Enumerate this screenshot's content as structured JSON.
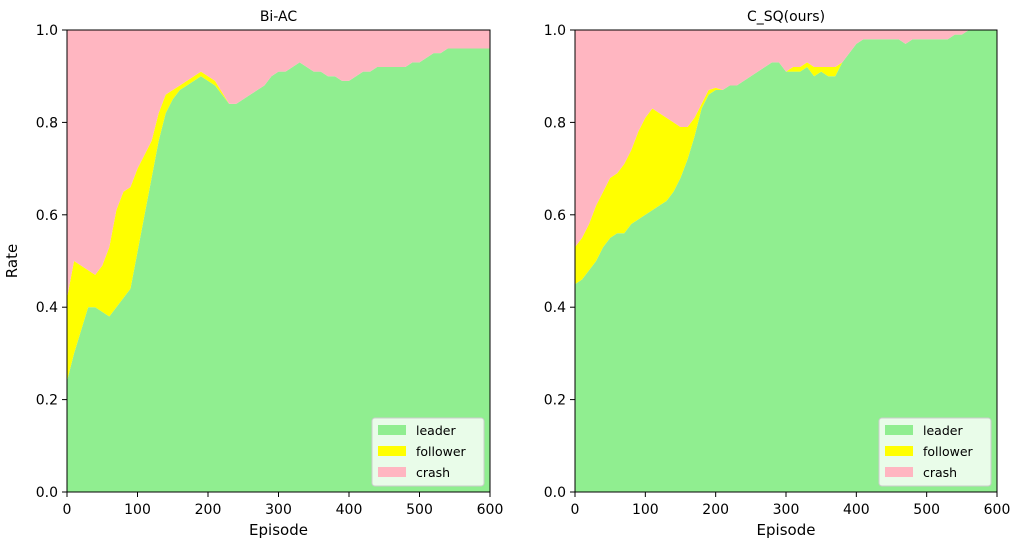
{
  "chart_data": [
    {
      "type": "area",
      "stacked": true,
      "title": "Bi-AC",
      "xlabel": "Episode",
      "ylabel": "Rate",
      "xlim": [
        0,
        600
      ],
      "ylim": [
        0,
        1
      ],
      "xticks": [
        "0",
        "100",
        "200",
        "300",
        "400",
        "500",
        "600"
      ],
      "yticks": [
        "0.0",
        "0.2",
        "0.4",
        "0.6",
        "0.8",
        "1.0"
      ],
      "legend_position": "bottom-right",
      "x": [
        0,
        10,
        20,
        30,
        40,
        50,
        60,
        70,
        80,
        90,
        100,
        110,
        120,
        130,
        140,
        150,
        160,
        170,
        180,
        190,
        200,
        210,
        220,
        230,
        240,
        250,
        260,
        270,
        280,
        290,
        300,
        310,
        320,
        330,
        340,
        350,
        360,
        370,
        380,
        390,
        400,
        410,
        420,
        430,
        440,
        450,
        460,
        470,
        480,
        490,
        500,
        510,
        520,
        530,
        540,
        550,
        560,
        570,
        580,
        590,
        600
      ],
      "series": [
        {
          "name": "leader",
          "color": "#90ee90",
          "values": [
            0.24,
            0.3,
            0.35,
            0.4,
            0.4,
            0.39,
            0.38,
            0.4,
            0.42,
            0.44,
            0.52,
            0.6,
            0.68,
            0.76,
            0.82,
            0.85,
            0.87,
            0.88,
            0.89,
            0.9,
            0.89,
            0.88,
            0.86,
            0.84,
            0.84,
            0.85,
            0.86,
            0.87,
            0.88,
            0.9,
            0.91,
            0.91,
            0.92,
            0.93,
            0.92,
            0.91,
            0.91,
            0.9,
            0.9,
            0.89,
            0.89,
            0.9,
            0.91,
            0.91,
            0.92,
            0.92,
            0.92,
            0.92,
            0.92,
            0.93,
            0.93,
            0.94,
            0.95,
            0.95,
            0.96,
            0.96,
            0.96,
            0.96,
            0.96,
            0.96,
            0.96
          ]
        },
        {
          "name": "follower",
          "color": "#ffff00",
          "values": [
            0.18,
            0.2,
            0.14,
            0.08,
            0.07,
            0.1,
            0.15,
            0.21,
            0.23,
            0.22,
            0.18,
            0.13,
            0.08,
            0.06,
            0.04,
            0.02,
            0.01,
            0.01,
            0.01,
            0.01,
            0.01,
            0.01,
            0.005,
            0,
            0,
            0,
            0,
            0,
            0,
            0,
            0,
            0,
            0,
            0,
            0,
            0,
            0,
            0,
            0,
            0,
            0,
            0,
            0,
            0,
            0,
            0,
            0,
            0,
            0,
            0,
            0,
            0,
            0,
            0,
            0,
            0,
            0,
            0,
            0,
            0,
            0
          ]
        },
        {
          "name": "crash",
          "color": "#ffb6c1",
          "values": [
            0.58,
            0.5,
            0.51,
            0.52,
            0.53,
            0.51,
            0.47,
            0.39,
            0.35,
            0.34,
            0.3,
            0.27,
            0.24,
            0.18,
            0.14,
            0.13,
            0.12,
            0.11,
            0.1,
            0.09,
            0.1,
            0.11,
            0.135,
            0.16,
            0.16,
            0.15,
            0.14,
            0.13,
            0.12,
            0.1,
            0.09,
            0.09,
            0.08,
            0.07,
            0.08,
            0.09,
            0.09,
            0.1,
            0.1,
            0.11,
            0.11,
            0.1,
            0.09,
            0.09,
            0.08,
            0.08,
            0.08,
            0.08,
            0.08,
            0.07,
            0.07,
            0.06,
            0.05,
            0.05,
            0.04,
            0.04,
            0.04,
            0.04,
            0.04,
            0.04,
            0.04
          ]
        }
      ]
    },
    {
      "type": "area",
      "stacked": true,
      "title": "C_SQ(ours)",
      "xlabel": "Episode",
      "ylabel": "",
      "xlim": [
        0,
        600
      ],
      "ylim": [
        0,
        1
      ],
      "xticks": [
        "0",
        "100",
        "200",
        "300",
        "400",
        "500",
        "600"
      ],
      "yticks": [
        "0.0",
        "0.2",
        "0.4",
        "0.6",
        "0.8",
        "1.0"
      ],
      "legend_position": "bottom-right",
      "x": [
        0,
        10,
        20,
        30,
        40,
        50,
        60,
        70,
        80,
        90,
        100,
        110,
        120,
        130,
        140,
        150,
        160,
        170,
        180,
        190,
        200,
        210,
        220,
        230,
        240,
        250,
        260,
        270,
        280,
        290,
        300,
        310,
        320,
        330,
        340,
        350,
        360,
        370,
        380,
        390,
        400,
        410,
        420,
        430,
        440,
        450,
        460,
        470,
        480,
        490,
        500,
        510,
        520,
        530,
        540,
        550,
        560,
        570,
        580,
        590,
        600
      ],
      "series": [
        {
          "name": "leader",
          "color": "#90ee90",
          "values": [
            0.45,
            0.46,
            0.48,
            0.5,
            0.53,
            0.55,
            0.56,
            0.56,
            0.58,
            0.59,
            0.6,
            0.61,
            0.62,
            0.63,
            0.65,
            0.68,
            0.72,
            0.77,
            0.83,
            0.86,
            0.87,
            0.87,
            0.88,
            0.88,
            0.89,
            0.9,
            0.91,
            0.92,
            0.93,
            0.93,
            0.91,
            0.91,
            0.91,
            0.92,
            0.9,
            0.91,
            0.9,
            0.9,
            0.93,
            0.95,
            0.97,
            0.98,
            0.98,
            0.98,
            0.98,
            0.98,
            0.98,
            0.97,
            0.98,
            0.98,
            0.98,
            0.98,
            0.98,
            0.98,
            0.99,
            0.99,
            1.0,
            1.0,
            1.0,
            1.0,
            1.0
          ]
        },
        {
          "name": "follower",
          "color": "#ffff00",
          "values": [
            0.08,
            0.09,
            0.1,
            0.12,
            0.12,
            0.13,
            0.13,
            0.15,
            0.16,
            0.19,
            0.21,
            0.22,
            0.2,
            0.18,
            0.15,
            0.11,
            0.07,
            0.04,
            0.01,
            0.01,
            0.005,
            0,
            0,
            0,
            0,
            0,
            0,
            0,
            0,
            0,
            0,
            0.01,
            0.01,
            0.01,
            0.02,
            0.01,
            0.02,
            0.02,
            0,
            0,
            0,
            0,
            0,
            0,
            0,
            0,
            0,
            0,
            0,
            0,
            0,
            0,
            0,
            0,
            0,
            0,
            0,
            0,
            0,
            0,
            0
          ]
        },
        {
          "name": "crash",
          "color": "#ffb6c1",
          "values": [
            0.47,
            0.45,
            0.42,
            0.38,
            0.35,
            0.32,
            0.31,
            0.29,
            0.26,
            0.22,
            0.19,
            0.17,
            0.18,
            0.19,
            0.2,
            0.21,
            0.21,
            0.19,
            0.16,
            0.13,
            0.125,
            0.13,
            0.12,
            0.12,
            0.11,
            0.1,
            0.09,
            0.08,
            0.07,
            0.07,
            0.09,
            0.08,
            0.08,
            0.07,
            0.08,
            0.08,
            0.08,
            0.08,
            0.07,
            0.05,
            0.03,
            0.02,
            0.02,
            0.02,
            0.02,
            0.02,
            0.02,
            0.03,
            0.02,
            0.02,
            0.02,
            0.02,
            0.02,
            0.02,
            0.01,
            0.01,
            0,
            0,
            0,
            0,
            0
          ]
        }
      ]
    }
  ]
}
